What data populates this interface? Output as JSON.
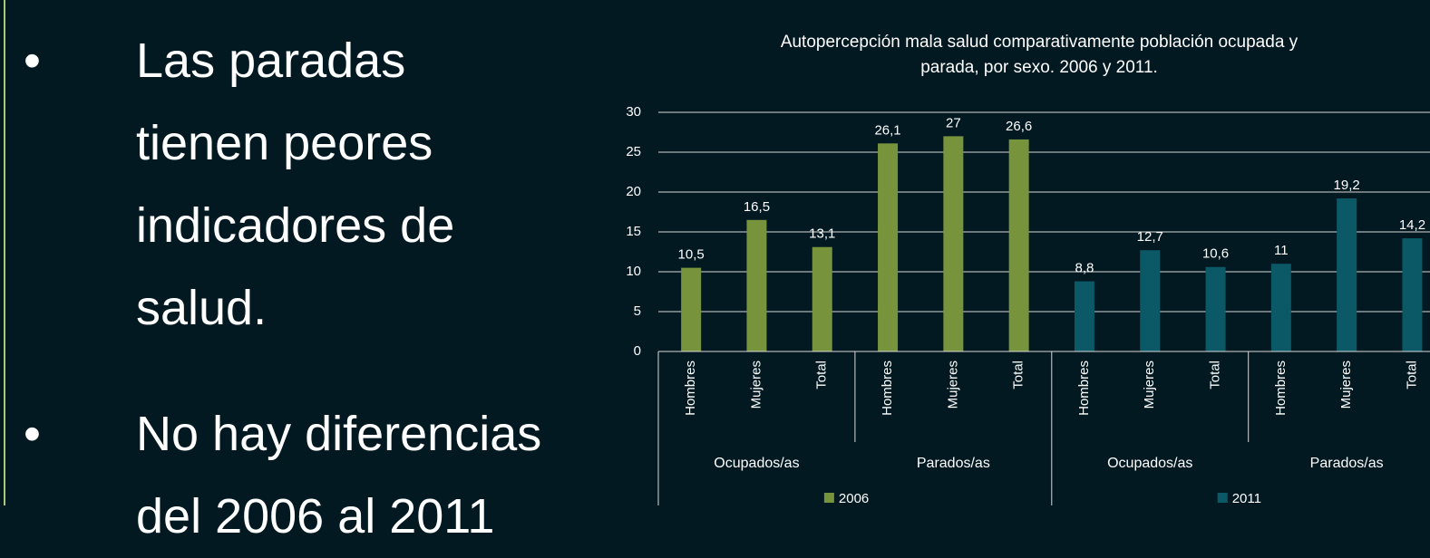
{
  "bullets": [
    [
      "Las paradas",
      "tienen peores",
      "indicadores de",
      "salud."
    ],
    [
      "No hay diferencias",
      "del 2006 al 2011"
    ]
  ],
  "chart_data": {
    "type": "bar",
    "title": [
      "Autopercepción mala salud comparativamente población ocupada y",
      "parada, por sexo. 2006 y 2011."
    ],
    "categories": [
      "Hombres",
      "Mujeres",
      "Total",
      "Hombres",
      "Mujeres",
      "Total",
      "Hombres",
      "Mujeres",
      "Total",
      "Hombres",
      "Mujeres",
      "Total"
    ],
    "groups": [
      "Ocupados/as",
      "Parados/as",
      "Ocupados/as",
      "Parados/as"
    ],
    "series": [
      {
        "name": "2006",
        "color": "#77933c",
        "values": [
          10.5,
          16.5,
          13.1,
          26.1,
          27,
          26.6,
          null,
          null,
          null,
          null,
          null,
          null
        ],
        "value_labels": [
          "10,5",
          "16,5",
          "13,1",
          "26,1",
          "27",
          "26,6",
          null,
          null,
          null,
          null,
          null,
          null
        ]
      },
      {
        "name": "2011",
        "color": "#0b5866",
        "values": [
          null,
          null,
          null,
          null,
          null,
          null,
          8.8,
          12.7,
          10.6,
          11,
          19.2,
          14.2
        ],
        "value_labels": [
          null,
          null,
          null,
          null,
          null,
          null,
          "8,8",
          "12,7",
          "10,6",
          "11",
          "19,2",
          "14,2"
        ]
      }
    ],
    "ylim": [
      0,
      30
    ],
    "yticks": [
      0,
      5,
      10,
      15,
      20,
      25,
      30
    ],
    "grid": true
  }
}
